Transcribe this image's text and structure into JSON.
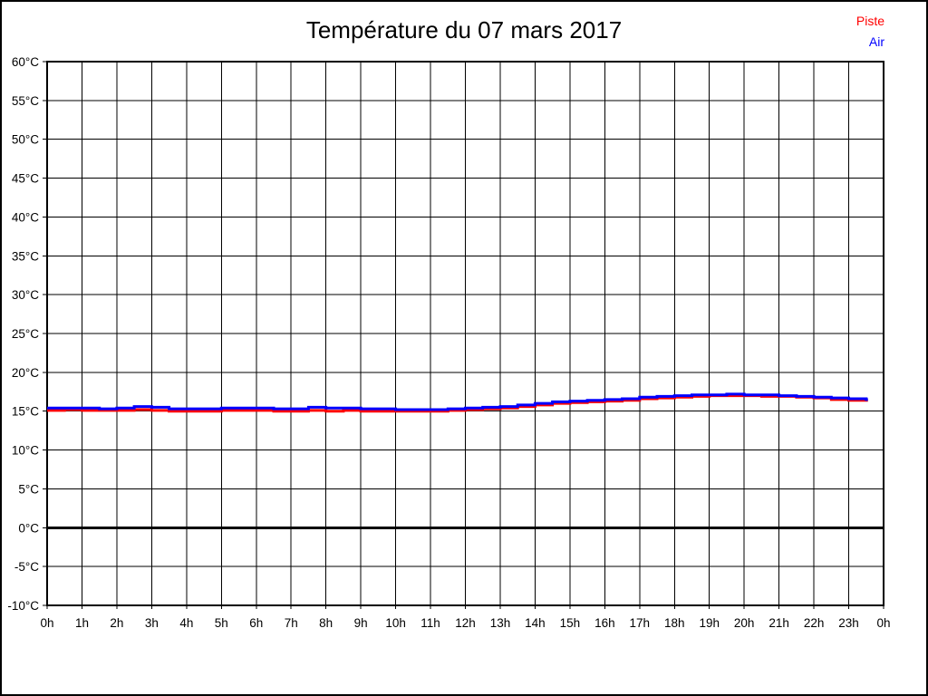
{
  "page": {
    "title": "Température du 07 mars 2017"
  },
  "legend": {
    "items": [
      {
        "label": "Piste",
        "color": "#ff0000"
      },
      {
        "label": "Air",
        "color": "#0000ff"
      }
    ]
  },
  "chart_data": {
    "type": "line",
    "title": "Température du 07 mars 2017",
    "xlabel": "",
    "ylabel": "",
    "xlim": [
      0,
      24
    ],
    "ylim": [
      -10,
      60
    ],
    "grid": true,
    "grid_color": "#000000",
    "frame_color": "#000000",
    "zero_line_value": 0,
    "zero_line_width": 3,
    "legend_position": "top-right",
    "line_style": "step-after",
    "line_width": 3,
    "x_start_hour": 0,
    "x_step_hours": 0.5,
    "x_tick_labels": [
      "0h",
      "1h",
      "2h",
      "3h",
      "4h",
      "5h",
      "6h",
      "7h",
      "8h",
      "9h",
      "10h",
      "11h",
      "12h",
      "13h",
      "14h",
      "15h",
      "16h",
      "17h",
      "18h",
      "19h",
      "20h",
      "21h",
      "22h",
      "23h",
      "0h"
    ],
    "y_tick_values": [
      60,
      55,
      50,
      45,
      40,
      35,
      30,
      25,
      20,
      15,
      10,
      5,
      0,
      -5,
      -10
    ],
    "y_tick_labels": [
      "60°C",
      "55°C",
      "50°C",
      "45°C",
      "40°C",
      "35°C",
      "30°C",
      "25°C",
      "20°C",
      "15°C",
      "10°C",
      "5°C",
      "0°C",
      "-5°C",
      "-10°C"
    ],
    "series": [
      {
        "name": "Piste",
        "color": "#ff0000",
        "values": [
          15.1,
          15.2,
          15.1,
          15.1,
          15.1,
          15.2,
          15.1,
          15.0,
          15.0,
          15.0,
          15.1,
          15.1,
          15.1,
          15.0,
          15.0,
          15.1,
          15.0,
          15.1,
          15.0,
          15.0,
          15.0,
          15.0,
          15.0,
          15.1,
          15.2,
          15.3,
          15.4,
          15.6,
          15.8,
          16.0,
          16.1,
          16.2,
          16.3,
          16.4,
          16.6,
          16.7,
          16.8,
          16.9,
          17.0,
          17.0,
          17.0,
          16.9,
          16.9,
          16.8,
          16.7,
          16.5,
          16.4,
          16.4
        ]
      },
      {
        "name": "Air",
        "color": "#0000ff",
        "values": [
          15.4,
          15.4,
          15.4,
          15.3,
          15.4,
          15.6,
          15.5,
          15.3,
          15.3,
          15.3,
          15.4,
          15.4,
          15.4,
          15.3,
          15.3,
          15.5,
          15.4,
          15.4,
          15.3,
          15.3,
          15.2,
          15.2,
          15.2,
          15.3,
          15.4,
          15.5,
          15.6,
          15.8,
          16.0,
          16.2,
          16.3,
          16.4,
          16.5,
          16.6,
          16.8,
          16.9,
          17.0,
          17.1,
          17.1,
          17.2,
          17.1,
          17.1,
          17.0,
          16.9,
          16.8,
          16.7,
          16.6,
          16.5
        ]
      }
    ]
  }
}
